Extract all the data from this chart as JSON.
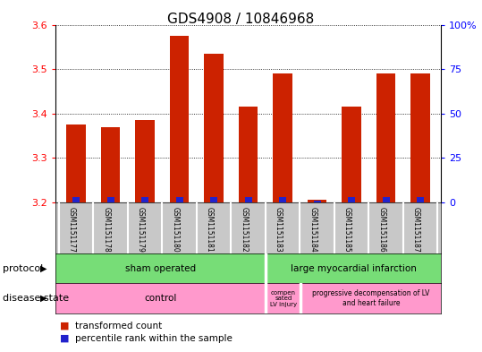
{
  "title": "GDS4908 / 10846968",
  "samples": [
    "GSM1151177",
    "GSM1151178",
    "GSM1151179",
    "GSM1151180",
    "GSM1151181",
    "GSM1151182",
    "GSM1151183",
    "GSM1151184",
    "GSM1151185",
    "GSM1151186",
    "GSM1151187"
  ],
  "transformed_counts": [
    3.375,
    3.37,
    3.385,
    3.575,
    3.535,
    3.415,
    3.49,
    3.205,
    3.415,
    3.49,
    3.49
  ],
  "percentile_ranks": [
    3,
    3,
    3,
    3,
    3,
    3,
    3,
    1,
    3,
    3,
    3
  ],
  "ylim_left": [
    3.2,
    3.6
  ],
  "ylim_right": [
    0,
    100
  ],
  "yticks_left": [
    3.2,
    3.3,
    3.4,
    3.5,
    3.6
  ],
  "yticks_right": [
    0,
    25,
    50,
    75,
    100
  ],
  "bar_color": "#cc2200",
  "percentile_color": "#2222cc",
  "plot_bg": "#ffffff",
  "protocol_sham": "sham operated",
  "protocol_large": "large myocardial infarction",
  "disease_control": "control",
  "disease_compen": "compen\nsated\nLV injury",
  "disease_progressive": "progressive decompensation of LV\nand heart failure",
  "green_color": "#77dd77",
  "pink_color": "#ff99cc",
  "sham_n": 6,
  "large_n": 5,
  "control_n": 6,
  "compen_n": 1,
  "progressive_n": 4
}
